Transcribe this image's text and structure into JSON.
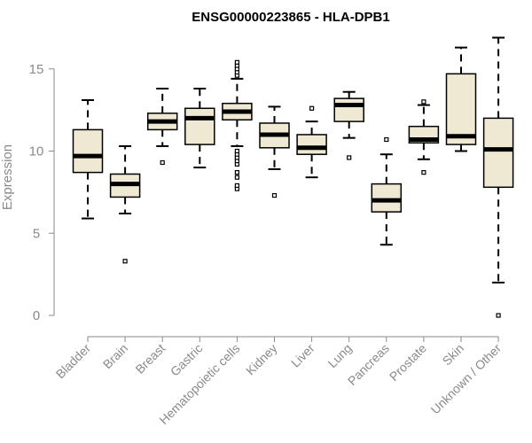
{
  "chart_data": {
    "type": "box",
    "title": "ENSG00000223865 - HLA-DPB1",
    "xlabel": "",
    "ylabel": "Expression",
    "ylim": [
      0,
      17
    ],
    "yticks": [
      0,
      5,
      10,
      15
    ],
    "grid": false,
    "legend": "none",
    "colors": {
      "box_fill": "#efe8d3",
      "box_stroke": "#000000",
      "median": "#000000",
      "axis": "#8a8a8a",
      "title": "#000000"
    },
    "categories": [
      "Bladder",
      "Brain",
      "Breast",
      "Gastric",
      "Hematopoietic cells",
      "Kidney",
      "Liver",
      "Lung",
      "Pancreas",
      "Prostate",
      "Skin",
      "Unknown / Other"
    ],
    "boxes": [
      {
        "category": "Bladder",
        "whisker_low": 5.9,
        "q1": 8.7,
        "median": 9.7,
        "q3": 11.3,
        "whisker_high": 13.1,
        "outliers": []
      },
      {
        "category": "Brain",
        "whisker_low": 6.2,
        "q1": 7.2,
        "median": 8.0,
        "q3": 8.6,
        "whisker_high": 10.3,
        "outliers": [
          3.3
        ]
      },
      {
        "category": "Breast",
        "whisker_low": 10.3,
        "q1": 11.3,
        "median": 11.8,
        "q3": 12.3,
        "whisker_high": 13.8,
        "outliers": [
          9.3
        ]
      },
      {
        "category": "Gastric",
        "whisker_low": 9.0,
        "q1": 10.4,
        "median": 12.0,
        "q3": 12.6,
        "whisker_high": 13.8,
        "outliers": []
      },
      {
        "category": "Hematopoietic cells",
        "whisker_low": 10.3,
        "q1": 11.9,
        "median": 12.4,
        "q3": 12.9,
        "whisker_high": 14.4,
        "outliers": [
          7.7,
          7.9,
          8.4,
          8.7,
          9.2,
          9.4,
          9.6,
          9.8,
          10.0,
          14.6,
          14.8,
          15.0,
          15.2,
          15.4
        ]
      },
      {
        "category": "Kidney",
        "whisker_low": 8.9,
        "q1": 10.2,
        "median": 11.0,
        "q3": 11.7,
        "whisker_high": 12.7,
        "outliers": [
          7.3
        ]
      },
      {
        "category": "Liver",
        "whisker_low": 8.4,
        "q1": 9.8,
        "median": 10.2,
        "q3": 11.0,
        "whisker_high": 11.8,
        "outliers": [
          12.6
        ]
      },
      {
        "category": "Lung",
        "whisker_low": 10.8,
        "q1": 11.8,
        "median": 12.8,
        "q3": 13.2,
        "whisker_high": 13.6,
        "outliers": [
          9.6
        ]
      },
      {
        "category": "Pancreas",
        "whisker_low": 4.3,
        "q1": 6.3,
        "median": 7.0,
        "q3": 8.0,
        "whisker_high": 9.8,
        "outliers": [
          10.7
        ]
      },
      {
        "category": "Prostate",
        "whisker_low": 9.5,
        "q1": 10.5,
        "median": 10.7,
        "q3": 11.5,
        "whisker_high": 12.8,
        "outliers": [
          8.7,
          13.0
        ]
      },
      {
        "category": "Skin",
        "whisker_low": 10.0,
        "q1": 10.4,
        "median": 10.9,
        "q3": 14.7,
        "whisker_high": 16.3,
        "outliers": []
      },
      {
        "category": "Unknown / Other",
        "whisker_low": 2.0,
        "q1": 7.8,
        "median": 10.1,
        "q3": 12.0,
        "whisker_high": 16.9,
        "outliers": [
          0.0
        ]
      }
    ]
  }
}
